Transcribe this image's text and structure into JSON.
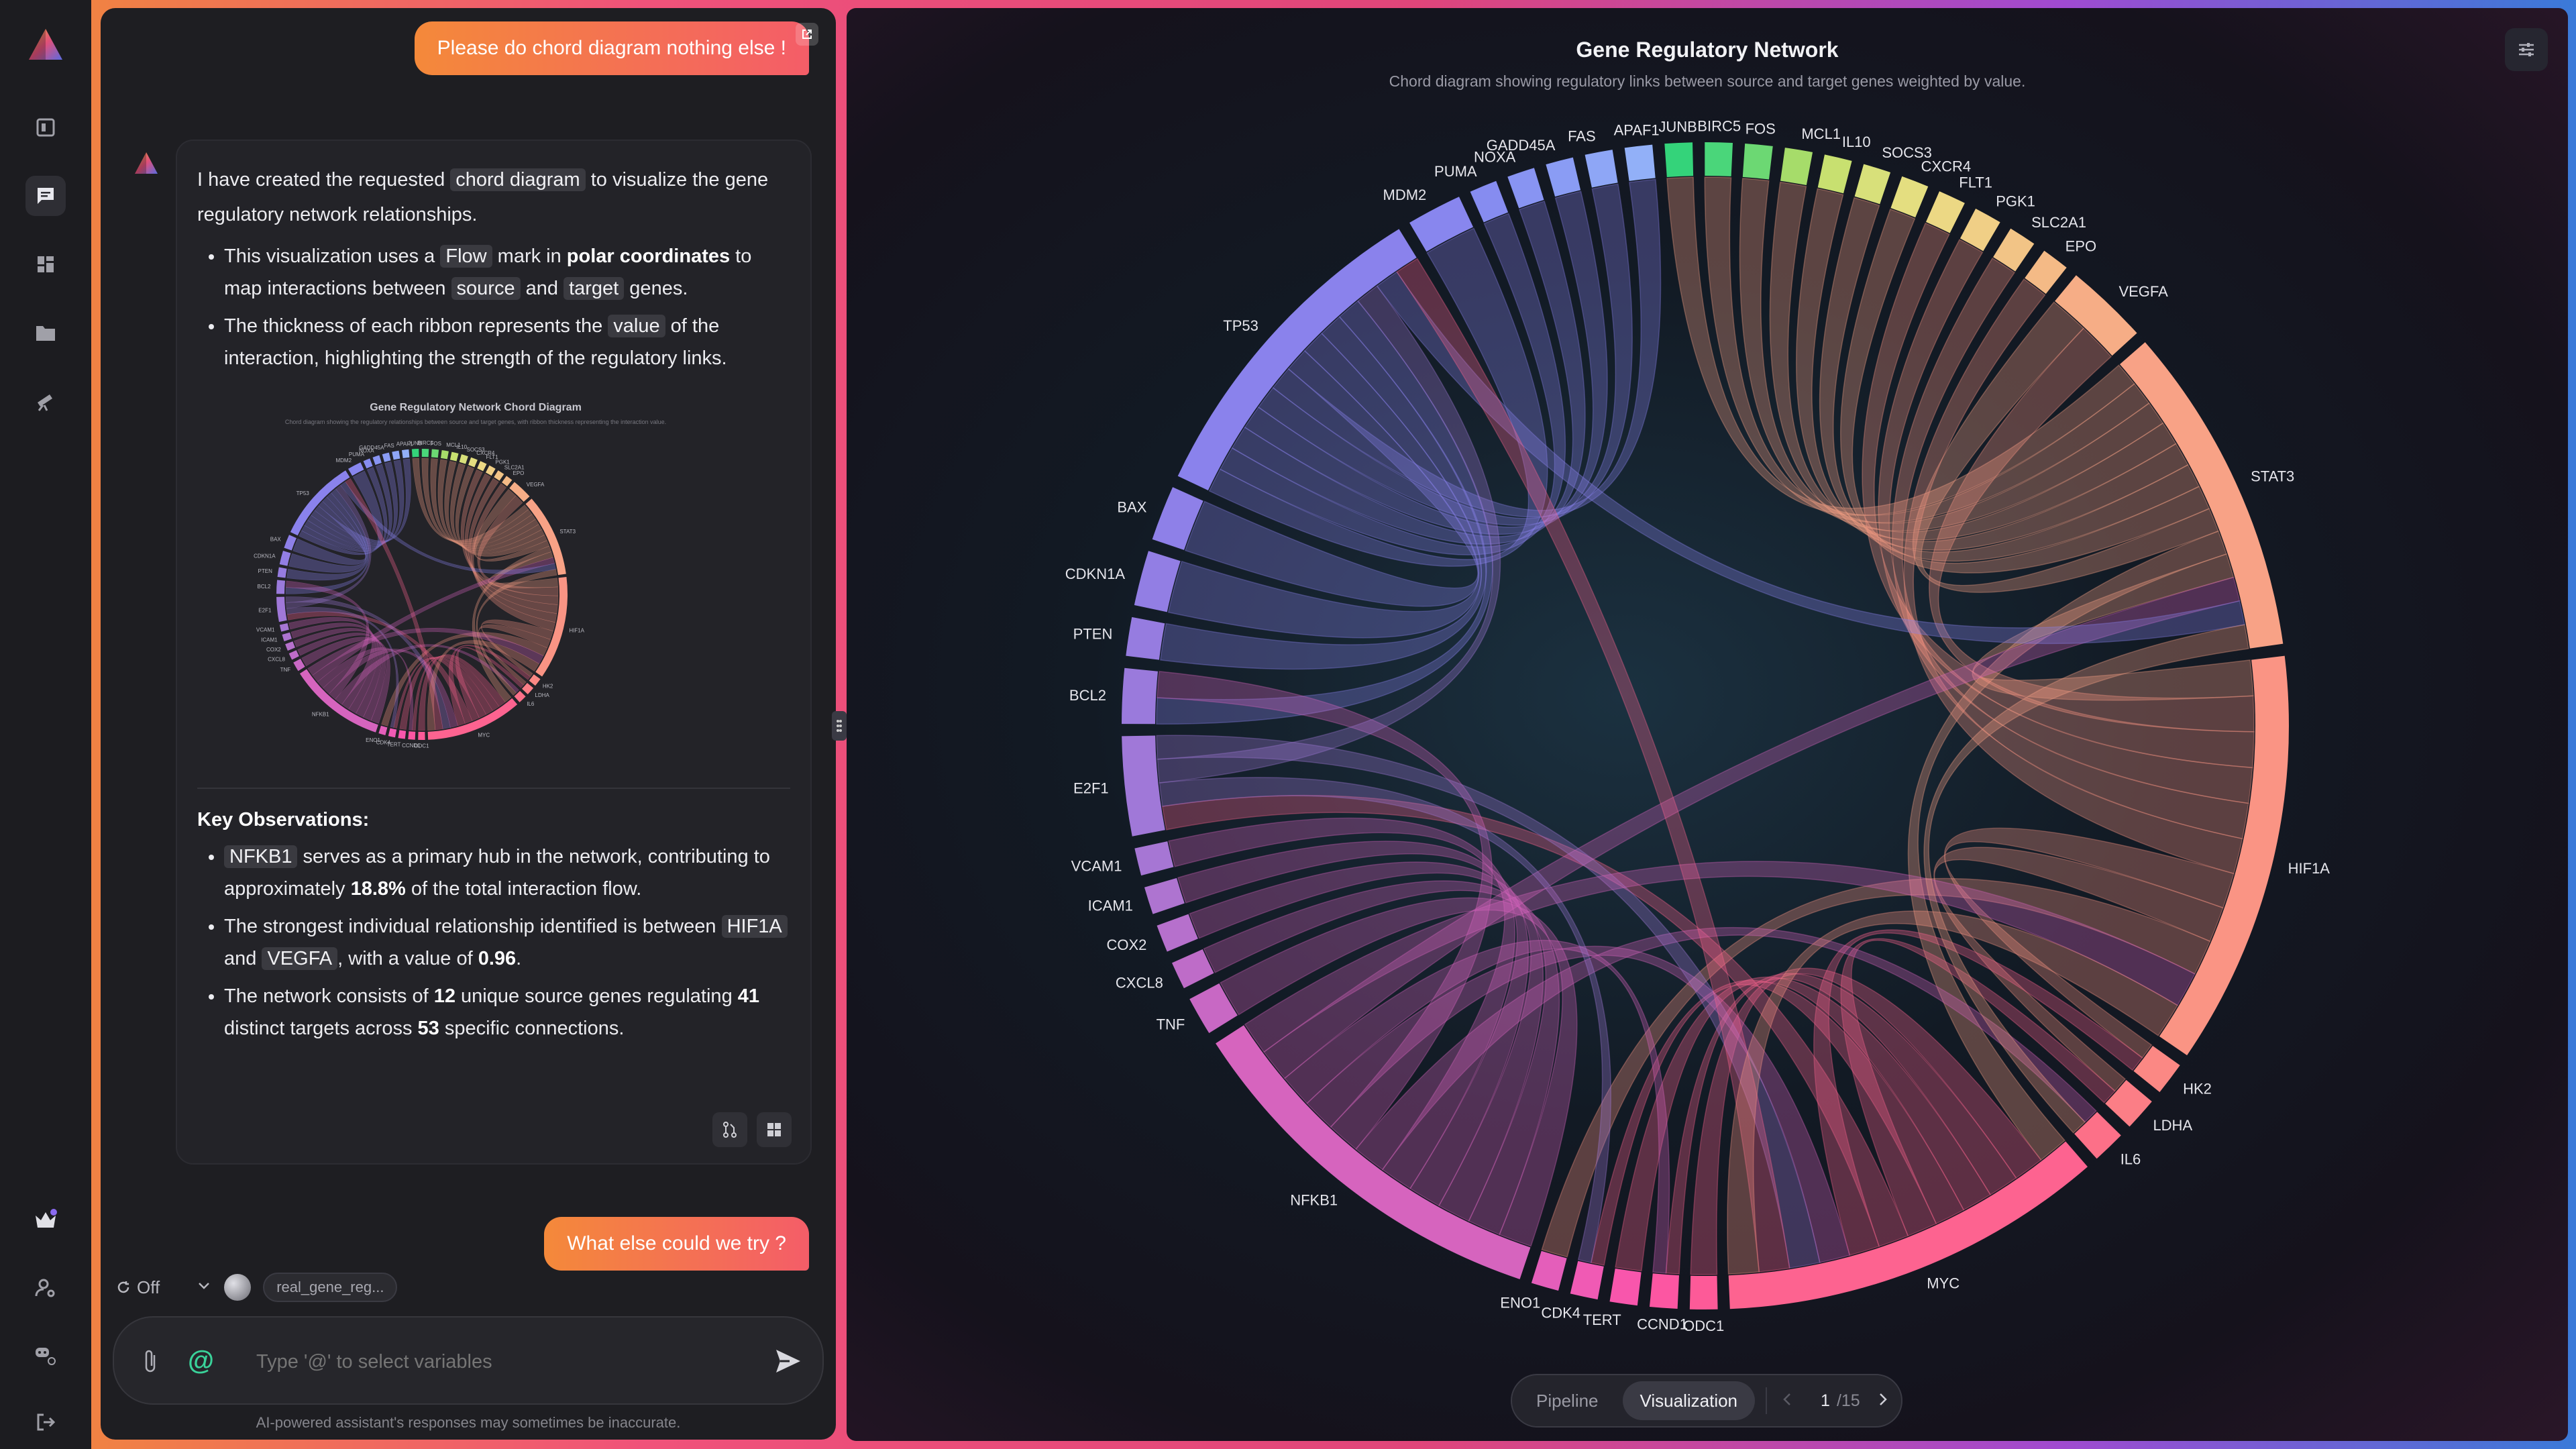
{
  "chat": {
    "user_messages": [
      "Please do chord diagram nothing else !",
      "What else could we try ?"
    ],
    "assistant": {
      "intro_pre": "I have created the requested ",
      "intro_code": "chord diagram",
      "intro_post": " to visualize the gene regulatory network relationships.",
      "b1_a": "This visualization uses a ",
      "b1_code": "Flow",
      "b1_b": " mark in ",
      "b1_bold": "polar coordinates",
      "b1_c": " to map interactions between ",
      "b1_code2": "source",
      "b1_d": " and ",
      "b1_code3": "target",
      "b1_e": " genes.",
      "b2_a": "The thickness of each ribbon represents the ",
      "b2_code": "value",
      "b2_b": " of the interaction, highlighting the strength of the regulatory links.",
      "thumb_title": "Gene Regulatory Network Chord Diagram",
      "thumb_subtitle": "Chord diagram showing the regulatory relationships between source and target genes, with ribbon thickness representing the interaction value.",
      "obs_title": "Key Observations:",
      "o1_code": "NFKB1",
      "o1_a": " serves as a primary hub in the network, contributing to approximately ",
      "o1_bold": "18.8%",
      "o1_b": " of the total interaction flow.",
      "o2_a": "The strongest individual relationship identified is between ",
      "o2_code1": "HIF1A",
      "o2_b": " and ",
      "o2_code2": "VEGFA",
      "o2_c": ", with a value of ",
      "o2_bold": "0.96",
      "o2_d": ".",
      "o3_a": "The network consists of ",
      "o3_b1": "12",
      "o3_b": " unique source genes regulating ",
      "o3_b2": "41",
      "o3_c": " distinct targets across ",
      "o3_b3": "53",
      "o3_d": " specific connections."
    },
    "controls": {
      "mode": "Off",
      "dataset_chip": "real_gene_reg..."
    },
    "input_placeholder": "Type '@' to select variables",
    "disclaimer": "AI-powered assistant's responses may sometimes be inaccurate."
  },
  "viz": {
    "title": "Gene Regulatory Network",
    "subtitle": "Chord diagram showing regulatory links between source and target genes weighted by value.",
    "tabs": [
      "Pipeline",
      "Visualization"
    ],
    "page": "1",
    "page_total": "/15"
  },
  "chart_data": {
    "type": "chord",
    "title": "Gene Regulatory Network",
    "nodes": [
      {
        "name": "JUNB",
        "color": "#34d37a",
        "size": 1
      },
      {
        "name": "BIRC5",
        "color": "#4ad67a",
        "size": 1
      },
      {
        "name": "FOS",
        "color": "#6cd873",
        "size": 1
      },
      {
        "name": "MCL1",
        "color": "#a6dc6a",
        "size": 1
      },
      {
        "name": "IL10",
        "color": "#c8e070",
        "size": 1
      },
      {
        "name": "SOCS3",
        "color": "#d8e07a",
        "size": 1
      },
      {
        "name": "CXCR4",
        "color": "#e4de80",
        "size": 1
      },
      {
        "name": "FLT1",
        "color": "#ecd884",
        "size": 1
      },
      {
        "name": "PGK1",
        "color": "#f0cf86",
        "size": 1
      },
      {
        "name": "SLC2A1",
        "color": "#f2c486",
        "size": 1
      },
      {
        "name": "EPO",
        "color": "#f4ba86",
        "size": 1
      },
      {
        "name": "VEGFA",
        "color": "#f6ad86",
        "size": 3
      },
      {
        "name": "STAT3",
        "color": "#f8a286",
        "size": 12
      },
      {
        "name": "HIF1A",
        "color": "#fa9484",
        "size": 15
      },
      {
        "name": "HK2",
        "color": "#fb8884",
        "size": 1.2
      },
      {
        "name": "LDHA",
        "color": "#fb7e86",
        "size": 1.2
      },
      {
        "name": "IL6",
        "color": "#fc7088",
        "size": 1.2
      },
      {
        "name": "MYC",
        "color": "#fd6390",
        "size": 14
      },
      {
        "name": "ODC1",
        "color": "#fd5a98",
        "size": 1
      },
      {
        "name": "CCND1",
        "color": "#fc56a2",
        "size": 1
      },
      {
        "name": "TERT",
        "color": "#f856ac",
        "size": 1
      },
      {
        "name": "CDK4",
        "color": "#f05ab4",
        "size": 1
      },
      {
        "name": "ENO1",
        "color": "#e45eba",
        "size": 1
      },
      {
        "name": "NFKB1",
        "color": "#d664be",
        "size": 14
      },
      {
        "name": "TNF",
        "color": "#c868c4",
        "size": 1.4
      },
      {
        "name": "CXCL8",
        "color": "#be6cc8",
        "size": 1
      },
      {
        "name": "COX2",
        "color": "#b670cc",
        "size": 1
      },
      {
        "name": "ICAM1",
        "color": "#ae74d0",
        "size": 1
      },
      {
        "name": "VCAM1",
        "color": "#a676d4",
        "size": 1
      },
      {
        "name": "E2F1",
        "color": "#a078d8",
        "size": 3.6
      },
      {
        "name": "BCL2",
        "color": "#9a7adc",
        "size": 2
      },
      {
        "name": "PTEN",
        "color": "#967ce0",
        "size": 1.4
      },
      {
        "name": "CDKN1A",
        "color": "#927ee4",
        "size": 2
      },
      {
        "name": "BAX",
        "color": "#8e80e8",
        "size": 2
      },
      {
        "name": "TP53",
        "color": "#8a82ec",
        "size": 12
      },
      {
        "name": "MDM2",
        "color": "#8886ee",
        "size": 2
      },
      {
        "name": "PUMA",
        "color": "#868cf0",
        "size": 1
      },
      {
        "name": "NOXA",
        "color": "#8894f2",
        "size": 1
      },
      {
        "name": "GADD45A",
        "color": "#8a9cf4",
        "size": 1
      },
      {
        "name": "FAS",
        "color": "#8ea6f6",
        "size": 1
      },
      {
        "name": "APAF1",
        "color": "#92b0f8",
        "size": 1
      }
    ],
    "links": [
      [
        "TP53",
        "MDM2"
      ],
      [
        "TP53",
        "PUMA"
      ],
      [
        "TP53",
        "NOXA"
      ],
      [
        "TP53",
        "GADD45A"
      ],
      [
        "TP53",
        "FAS"
      ],
      [
        "TP53",
        "APAF1"
      ],
      [
        "TP53",
        "BAX"
      ],
      [
        "TP53",
        "CDKN1A"
      ],
      [
        "TP53",
        "PTEN"
      ],
      [
        "TP53",
        "BCL2"
      ],
      [
        "STAT3",
        "JUNB"
      ],
      [
        "STAT3",
        "BIRC5"
      ],
      [
        "STAT3",
        "FOS"
      ],
      [
        "STAT3",
        "MCL1"
      ],
      [
        "STAT3",
        "IL10"
      ],
      [
        "STAT3",
        "SOCS3"
      ],
      [
        "STAT3",
        "CXCR4"
      ],
      [
        "STAT3",
        "VEGFA"
      ],
      [
        "STAT3",
        "MYC"
      ],
      [
        "STAT3",
        "HIF1A"
      ],
      [
        "HIF1A",
        "VEGFA"
      ],
      [
        "HIF1A",
        "FLT1"
      ],
      [
        "HIF1A",
        "PGK1"
      ],
      [
        "HIF1A",
        "SLC2A1"
      ],
      [
        "HIF1A",
        "EPO"
      ],
      [
        "HIF1A",
        "HK2"
      ],
      [
        "HIF1A",
        "LDHA"
      ],
      [
        "HIF1A",
        "ENO1"
      ],
      [
        "MYC",
        "ODC1"
      ],
      [
        "MYC",
        "CCND1"
      ],
      [
        "MYC",
        "TERT"
      ],
      [
        "MYC",
        "CDK4"
      ],
      [
        "MYC",
        "LDHA"
      ],
      [
        "MYC",
        "E2F1"
      ],
      [
        "MYC",
        "HK2"
      ],
      [
        "NFKB1",
        "TNF"
      ],
      [
        "NFKB1",
        "CXCL8"
      ],
      [
        "NFKB1",
        "COX2"
      ],
      [
        "NFKB1",
        "ICAM1"
      ],
      [
        "NFKB1",
        "VCAM1"
      ],
      [
        "NFKB1",
        "IL6"
      ],
      [
        "NFKB1",
        "BCL2"
      ],
      [
        "NFKB1",
        "MYC"
      ],
      [
        "NFKB1",
        "CCND1"
      ],
      [
        "NFKB1",
        "STAT3"
      ],
      [
        "E2F1",
        "CDK4"
      ],
      [
        "E2F1",
        "TP53"
      ],
      [
        "E2F1",
        "MYC"
      ],
      [
        "NFKB1",
        "HIF1A"
      ],
      [
        "TP53",
        "STAT3"
      ],
      [
        "MYC",
        "TP53"
      ],
      [
        "STAT3",
        "IL6"
      ],
      [
        "HIF1A",
        "MYC"
      ]
    ]
  }
}
